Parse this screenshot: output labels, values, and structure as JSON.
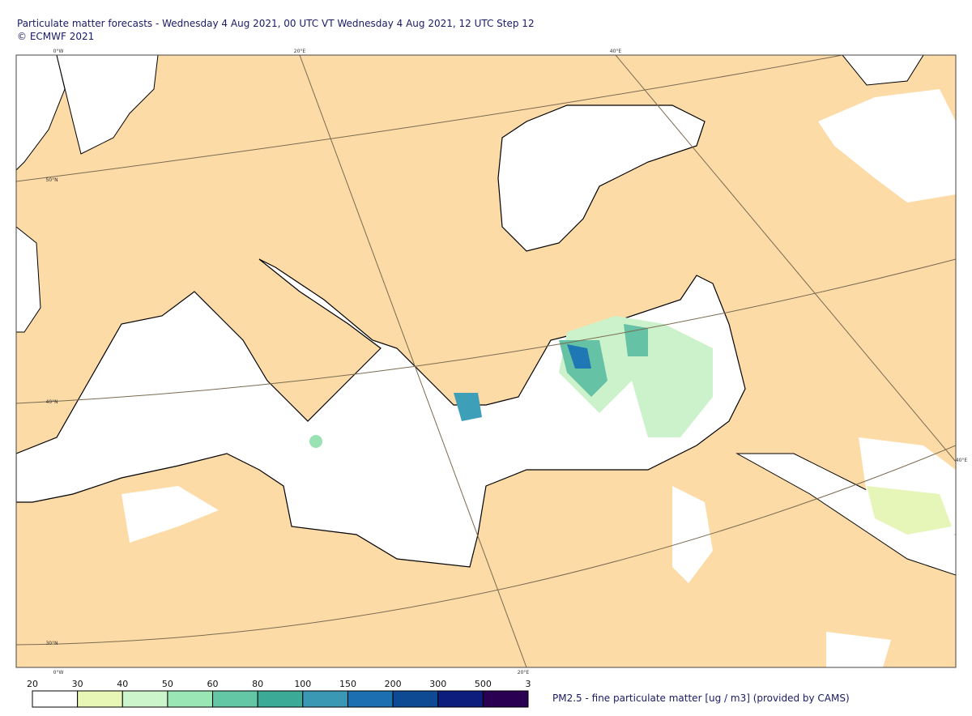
{
  "header": {
    "title": "Particulate matter forecasts - Wednesday 4 Aug 2021, 00 UTC VT Wednesday 4 Aug 2021, 12 UTC Step 12",
    "copyright": "© ECMWF 2021"
  },
  "graticule": [
    "0°W",
    "20°E",
    "40°E",
    "50°N",
    "40°N",
    "30°N",
    "40°E",
    "0°W",
    "20°E"
  ],
  "legend": {
    "labels": [
      "20",
      "30",
      "40",
      "50",
      "60",
      "80",
      "100",
      "150",
      "200",
      "300",
      "500",
      "3"
    ],
    "caption": "PM2.5 - fine particulate matter [ug / m3] (provided by CAMS)"
  }
}
